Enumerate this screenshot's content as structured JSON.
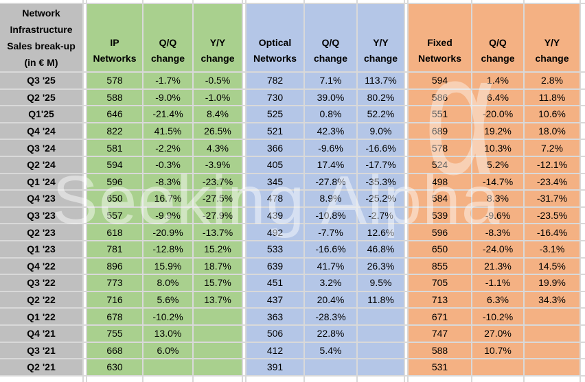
{
  "chart_data": {
    "type": "table",
    "title": "Network Infrastructure Sales break-up (in € M)",
    "corner_header_lines": [
      "Network",
      "Infrastructure",
      "Sales break-up",
      "(in € M)"
    ],
    "qq_header_lines": [
      "Q/Q",
      "change"
    ],
    "yy_header_lines": [
      "Y/Y",
      "change"
    ],
    "categories": [
      "Q3 '25",
      "Q2 '25",
      "Q1'25",
      "Q4 '24",
      "Q3 '24",
      "Q2 '24",
      "Q1 '24",
      "Q4 '23",
      "Q3 '23",
      "Q2 '23",
      "Q1 '23",
      "Q4 '22",
      "Q3 '22",
      "Q2 '22",
      "Q1 '22",
      "Q4 '21",
      "Q3 '21",
      "Q2 '21"
    ],
    "groups": [
      {
        "key": "ip-networks",
        "name": "IP Networks",
        "header_lines": [
          "IP",
          "Networks"
        ],
        "color": "#A9D08E",
        "sales": [
          578,
          588,
          646,
          822,
          581,
          594,
          596,
          650,
          557,
          618,
          781,
          896,
          773,
          716,
          678,
          755,
          668,
          630
        ],
        "qq_change": [
          "-1.7%",
          "-9.0%",
          "-21.4%",
          "41.5%",
          "-2.2%",
          "-0.3%",
          "-8.3%",
          "16.7%",
          "-9.9%",
          "-20.9%",
          "-12.8%",
          "15.9%",
          "8.0%",
          "5.6%",
          "-10.2%",
          "13.0%",
          "6.0%",
          ""
        ],
        "yy_change": [
          "-0.5%",
          "-1.0%",
          "8.4%",
          "26.5%",
          "4.3%",
          "-3.9%",
          "-23.7%",
          "-27.5%",
          "-27.9%",
          "-13.7%",
          "15.2%",
          "18.7%",
          "15.7%",
          "13.7%",
          "",
          "",
          "",
          ""
        ]
      },
      {
        "key": "optical-networks",
        "name": "Optical Networks",
        "header_lines": [
          "Optical",
          "Networks"
        ],
        "color": "#B4C6E7",
        "sales": [
          782,
          730,
          525,
          521,
          366,
          405,
          345,
          478,
          439,
          492,
          533,
          639,
          451,
          437,
          363,
          506,
          412,
          391
        ],
        "qq_change": [
          "7.1%",
          "39.0%",
          "0.8%",
          "42.3%",
          "-9.6%",
          "17.4%",
          "-27.8%",
          "8.9%",
          "-10.8%",
          "-7.7%",
          "-16.6%",
          "41.7%",
          "3.2%",
          "20.4%",
          "-28.3%",
          "22.8%",
          "5.4%",
          ""
        ],
        "yy_change": [
          "113.7%",
          "80.2%",
          "52.2%",
          "9.0%",
          "-16.6%",
          "-17.7%",
          "-35.3%",
          "-25.2%",
          "-2.7%",
          "12.6%",
          "46.8%",
          "26.3%",
          "9.5%",
          "11.8%",
          "",
          "",
          "",
          ""
        ]
      },
      {
        "key": "fixed-networks",
        "name": "Fixed Networks",
        "header_lines": [
          "Fixed",
          "Networks"
        ],
        "color": "#F4B183",
        "sales": [
          594,
          586,
          551,
          689,
          578,
          524,
          498,
          584,
          539,
          596,
          650,
          855,
          705,
          713,
          671,
          747,
          588,
          531
        ],
        "qq_change": [
          "1.4%",
          "6.4%",
          "-20.0%",
          "19.2%",
          "10.3%",
          "5.2%",
          "-14.7%",
          "8.3%",
          "-9.6%",
          "-8.3%",
          "-24.0%",
          "21.3%",
          "-1.1%",
          "6.3%",
          "-10.2%",
          "27.0%",
          "10.7%",
          ""
        ],
        "yy_change": [
          "2.8%",
          "11.8%",
          "10.6%",
          "18.0%",
          "7.2%",
          "-12.1%",
          "-23.4%",
          "-31.7%",
          "-23.5%",
          "-16.4%",
          "-3.1%",
          "14.5%",
          "19.9%",
          "34.3%",
          "",
          "",
          "",
          ""
        ]
      }
    ]
  },
  "watermark": {
    "text": "Seeking Alpha",
    "symbol": "α"
  },
  "colors": {
    "label_bg": "#BFBFBF",
    "ip_bg": "#A9D08E",
    "optical_bg": "#B4C6E7",
    "fixed_bg": "#F4B183",
    "gridline": "#D9D9D9",
    "blank_bg": "#FFFFFF",
    "text": "#000000"
  }
}
